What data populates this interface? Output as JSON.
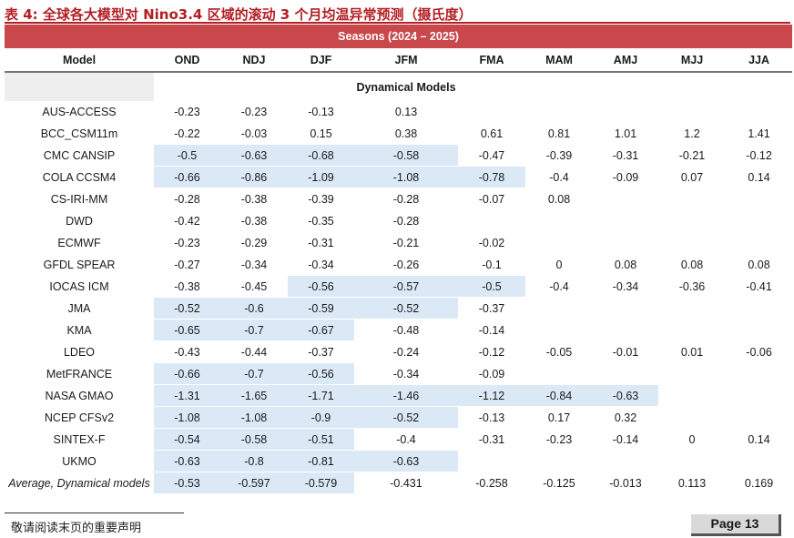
{
  "title": "表 4:  全球各大模型对 Nino3.4 区域的滚动 3 个月均温异常预测（摄氏度）",
  "table": {
    "seasons_header": "Seasons (2024 – 2025)",
    "model_header": "Model",
    "columns": [
      "OND",
      "NDJ",
      "DJF",
      "JFM",
      "FMA",
      "MAM",
      "AMJ",
      "MJJ",
      "JJA"
    ],
    "group_label": "Dynamical Models",
    "rows": [
      {
        "model": "AUS-ACCESS",
        "values": [
          "-0.23",
          "-0.23",
          "-0.13",
          "0.13",
          "",
          "",
          "",
          "",
          ""
        ]
      },
      {
        "model": "BCC_CSM11m",
        "values": [
          "-0.22",
          "-0.03",
          "0.15",
          "0.38",
          "0.61",
          "0.81",
          "1.01",
          "1.2",
          "1.41"
        ]
      },
      {
        "model": "CMC CANSIP",
        "values": [
          "-0.5",
          "-0.63",
          "-0.68",
          "-0.58",
          "-0.47",
          "-0.39",
          "-0.31",
          "-0.21",
          "-0.12"
        ]
      },
      {
        "model": "COLA CCSM4",
        "values": [
          "-0.66",
          "-0.86",
          "-1.09",
          "-1.08",
          "-0.78",
          "-0.4",
          "-0.09",
          "0.07",
          "0.14"
        ]
      },
      {
        "model": "CS-IRI-MM",
        "values": [
          "-0.28",
          "-0.38",
          "-0.39",
          "-0.28",
          "-0.07",
          "0.08",
          "",
          "",
          ""
        ]
      },
      {
        "model": "DWD",
        "values": [
          "-0.42",
          "-0.38",
          "-0.35",
          "-0.28",
          "",
          "",
          "",
          "",
          ""
        ]
      },
      {
        "model": "ECMWF",
        "values": [
          "-0.23",
          "-0.29",
          "-0.31",
          "-0.21",
          "-0.02",
          "",
          "",
          "",
          ""
        ]
      },
      {
        "model": "GFDL SPEAR",
        "values": [
          "-0.27",
          "-0.34",
          "-0.34",
          "-0.26",
          "-0.1",
          "0",
          "0.08",
          "0.08",
          "0.08"
        ]
      },
      {
        "model": "IOCAS ICM",
        "values": [
          "-0.38",
          "-0.45",
          "-0.56",
          "-0.57",
          "-0.5",
          "-0.4",
          "-0.34",
          "-0.36",
          "-0.41"
        ]
      },
      {
        "model": "JMA",
        "values": [
          "-0.52",
          "-0.6",
          "-0.59",
          "-0.52",
          "-0.37",
          "",
          "",
          "",
          ""
        ]
      },
      {
        "model": "KMA",
        "values": [
          "-0.65",
          "-0.7",
          "-0.67",
          "-0.48",
          "-0.14",
          "",
          "",
          "",
          ""
        ]
      },
      {
        "model": "LDEO",
        "values": [
          "-0.43",
          "-0.44",
          "-0.37",
          "-0.24",
          "-0.12",
          "-0.05",
          "-0.01",
          "0.01",
          "-0.06"
        ]
      },
      {
        "model": "MetFRANCE",
        "values": [
          "-0.66",
          "-0.7",
          "-0.56",
          "-0.34",
          "-0.09",
          "",
          "",
          "",
          ""
        ]
      },
      {
        "model": "NASA GMAO",
        "values": [
          "-1.31",
          "-1.65",
          "-1.71",
          "-1.46",
          "-1.12",
          "-0.84",
          "-0.63",
          "",
          ""
        ]
      },
      {
        "model": "NCEP CFSv2",
        "values": [
          "-1.08",
          "-1.08",
          "-0.9",
          "-0.52",
          "-0.13",
          "0.17",
          "0.32",
          "",
          ""
        ]
      },
      {
        "model": "SINTEX-F",
        "values": [
          "-0.54",
          "-0.58",
          "-0.51",
          "-0.4",
          "-0.31",
          "-0.23",
          "-0.14",
          "0",
          "0.14"
        ]
      },
      {
        "model": "UKMO",
        "values": [
          "-0.63",
          "-0.8",
          "-0.81",
          "-0.63",
          "",
          "",
          "",
          "",
          ""
        ]
      }
    ],
    "average": {
      "label": "Average, Dynamical models",
      "values": [
        "-0.53",
        "-0.597",
        "-0.579",
        "-0.431",
        "-0.258",
        "-0.125",
        "-0.013",
        "0.113",
        "0.169"
      ]
    },
    "highlight_threshold": -0.5
  },
  "footer": {
    "note": "敬请阅读末页的重要声明",
    "page_label": "Page  13"
  },
  "colors": {
    "title_red": "#b21f24",
    "header_bg": "#c8484b",
    "highlight_blue": "#dbe9f6",
    "group_grey": "#eeeeee"
  }
}
